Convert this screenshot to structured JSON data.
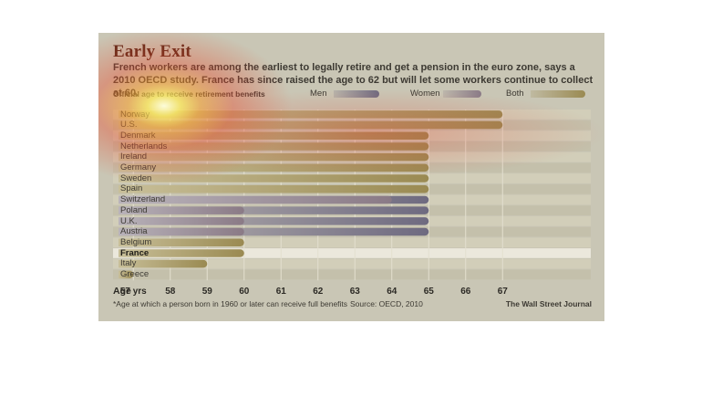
{
  "chart_data": {
    "type": "bar",
    "title": "Early Exit",
    "subtitle": "French workers are among the earliest to legally retire and get a pension in the euro zone, says a 2010 OECD study. France has since raised the age to 62 but will let some workers continue to collect at 60.",
    "caption": "Official age to receive retirement benefits",
    "legend": [
      "Men",
      "Women",
      "Both"
    ],
    "legend_colors": {
      "Men": "#6e6a80",
      "Women": "#8a7a86",
      "Both": "#9a8a52"
    },
    "xlabel": "Age",
    "xlim": [
      56.5,
      67.5
    ],
    "ticks": [
      57,
      58,
      59,
      60,
      61,
      62,
      63,
      64,
      65,
      66,
      67
    ],
    "tick_labels": [
      "57 yrs",
      "58",
      "59",
      "60",
      "61",
      "62",
      "63",
      "64",
      "65",
      "66",
      "67"
    ],
    "highlight": "France",
    "countries": [
      {
        "name": "Norway",
        "both": 67
      },
      {
        "name": "U.S.",
        "both": 67
      },
      {
        "name": "Denmark",
        "both": 65
      },
      {
        "name": "Netherlands",
        "both": 65
      },
      {
        "name": "Ireland",
        "both": 65
      },
      {
        "name": "Germany",
        "both": 65
      },
      {
        "name": "Sweden",
        "both": 65
      },
      {
        "name": "Spain",
        "both": 65
      },
      {
        "name": "Switzerland",
        "men": 65,
        "women": 64
      },
      {
        "name": "Poland",
        "men": 65,
        "women": 60
      },
      {
        "name": "U.K.",
        "men": 65,
        "women": 60
      },
      {
        "name": "Austria",
        "men": 65,
        "women": 60
      },
      {
        "name": "Belgium",
        "both": 60
      },
      {
        "name": "France",
        "both": 60
      },
      {
        "name": "Italy",
        "both": 59
      },
      {
        "name": "Greece",
        "both": 57
      }
    ]
  },
  "footnote": "*Age at which a person born in 1960 or later can receive full benefits",
  "source": "Source: OECD, 2010",
  "credit": "The Wall Street Journal"
}
